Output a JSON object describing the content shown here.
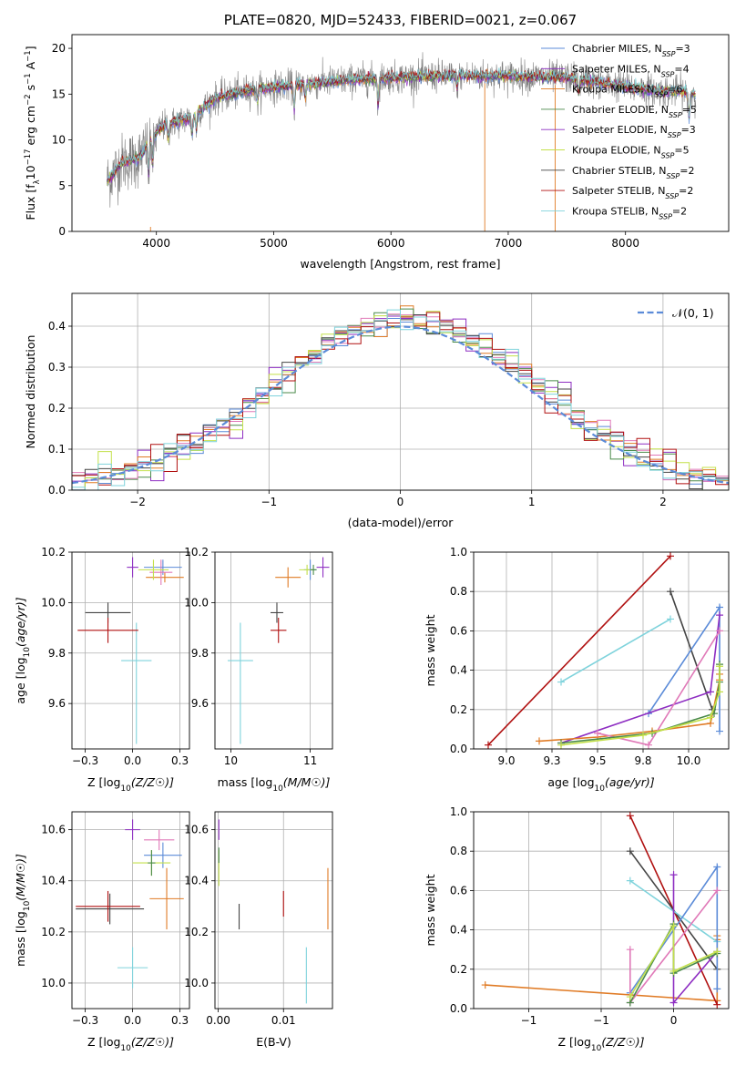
{
  "title": "PLATE=0820, MJD=52433, FIBERID=0021, z=0.067",
  "colors": {
    "chabrier_miles": "#5b8bd8",
    "salpeter_miles": "#8e2ec2",
    "kroupa_miles": "#e07b25",
    "chabrier_elodie": "#4a8a4a",
    "salpeter_elodie": "#8e2ec2",
    "kroupa_elodie": "#c3e04a",
    "chabrier_stelib": "#444444",
    "salpeter_stelib": "#b01010",
    "kroupa_stelib": "#7fd3dc",
    "data": "#808080",
    "pink": "#e079b8",
    "normal": "#5b8bd8"
  },
  "chart_data": [
    {
      "id": "spectrum",
      "type": "line",
      "title": "PLATE=0820, MJD=52433, FIBERID=0021, z=0.067",
      "xlabel": "wavelength [Angstrom, rest frame]",
      "ylabel_parts": [
        "Flux [f",
        "λ",
        "10",
        "−17",
        " erg cm",
        "−2",
        " s",
        "−1",
        " A",
        "−1",
        "]"
      ],
      "xlim": [
        3280,
        8880
      ],
      "ylim": [
        0,
        21.5
      ],
      "xticks": [
        4000,
        5000,
        6000,
        7000,
        8000
      ],
      "yticks": [
        0,
        5,
        10,
        15,
        20
      ],
      "continuum": [
        [
          3580,
          5.5
        ],
        [
          3700,
          7.5
        ],
        [
          3850,
          8.0
        ],
        [
          3950,
          10.0
        ],
        [
          4050,
          11.5
        ],
        [
          4300,
          12.5
        ],
        [
          4500,
          14.5
        ],
        [
          4800,
          15.5
        ],
        [
          5200,
          16.0
        ],
        [
          5600,
          16.5
        ],
        [
          6000,
          16.8
        ],
        [
          6500,
          17.0
        ],
        [
          7000,
          17.0
        ],
        [
          7500,
          16.8
        ],
        [
          8000,
          15.8
        ],
        [
          8300,
          15.3
        ],
        [
          8480,
          15.3
        ],
        [
          8580,
          15.0
        ]
      ],
      "absorptions": [
        [
          3934,
          3.5
        ],
        [
          3969,
          3.0
        ],
        [
          4102,
          1.5
        ],
        [
          4304,
          2.0
        ],
        [
          4340,
          1.8
        ],
        [
          4861,
          1.5
        ],
        [
          5175,
          2.5
        ],
        [
          5270,
          1.5
        ],
        [
          5890,
          2.8
        ],
        [
          6563,
          1.3
        ],
        [
          7600,
          1.5
        ],
        [
          8542,
          2.5
        ],
        [
          8662,
          2.0
        ]
      ],
      "data_spikes": [
        [
          3950,
          0.5
        ],
        [
          6800,
          17.0
        ],
        [
          7400,
          16.0
        ]
      ],
      "legend": [
        {
          "label": "Chabrier MILES, N",
          "sub": "SSP",
          "suffix": "=3",
          "color_key": "chabrier_miles"
        },
        {
          "label": "Salpeter MILES, N",
          "sub": "SSP",
          "suffix": "=4",
          "color_key": "salpeter_miles"
        },
        {
          "label": "Kroupa MILES, N",
          "sub": "SSP",
          "suffix": "=6",
          "color_key": "kroupa_miles"
        },
        {
          "label": "Chabrier ELODIE, N",
          "sub": "SSP",
          "suffix": "=5",
          "color_key": "chabrier_elodie"
        },
        {
          "label": "Salpeter ELODIE, N",
          "sub": "SSP",
          "suffix": "=3",
          "color_key": "salpeter_elodie"
        },
        {
          "label": "Kroupa ELODIE, N",
          "sub": "SSP",
          "suffix": "=5",
          "color_key": "kroupa_elodie"
        },
        {
          "label": "Chabrier STELIB, N",
          "sub": "SSP",
          "suffix": "=2",
          "color_key": "chabrier_stelib"
        },
        {
          "label": "Salpeter STELIB, N",
          "sub": "SSP",
          "suffix": "=2",
          "color_key": "salpeter_stelib"
        },
        {
          "label": "Kroupa STELIB, N",
          "sub": "SSP",
          "suffix": "=2",
          "color_key": "kroupa_stelib"
        }
      ]
    },
    {
      "id": "histogram",
      "type": "line",
      "xlabel": "(data-model)/error",
      "ylabel": "Normed distribution",
      "xlim": [
        -2.5,
        2.5
      ],
      "ylim": [
        0,
        0.48
      ],
      "xticks": [
        -2,
        -1,
        0,
        1,
        2
      ],
      "yticks": [
        0.0,
        0.1,
        0.2,
        0.3,
        0.4
      ],
      "grid": true,
      "legend": "𝒩(0, 1)",
      "legend_position": "top-right",
      "bin_width": 0.1,
      "series_color_keys": [
        "chabrier_miles",
        "salpeter_miles",
        "kroupa_miles",
        "chabrier_elodie",
        "pink",
        "kroupa_elodie",
        "chabrier_stelib",
        "salpeter_stelib",
        "kroupa_stelib"
      ],
      "normal_mean": 0.0,
      "normal_sigma": 1.0
    },
    {
      "id": "age_vs_Z",
      "type": "scatter",
      "xlabel": "Z [log10(Z/Z☉)]",
      "ylabel": "age  [log10(age/yr)]",
      "xlim": [
        -0.32,
        0.3
      ],
      "ylim": [
        9.42,
        10.2
      ],
      "xticks": [
        -0.25,
        0.0,
        0.25
      ],
      "yticks": [
        9.6,
        9.8,
        10.0,
        10.2
      ],
      "grid": true,
      "points": [
        {
          "x": 0.02,
          "y": 9.77,
          "xerr": 0.08,
          "yerr": [
            0.33,
            0.15
          ],
          "color_key": "kroupa_stelib"
        },
        {
          "x": -0.13,
          "y": 9.96,
          "xerr": 0.12,
          "yerr": 0.04,
          "color_key": "chabrier_stelib"
        },
        {
          "x": -0.13,
          "y": 9.89,
          "xerr": 0.16,
          "yerr": 0.05,
          "color_key": "salpeter_stelib"
        },
        {
          "x": 0.17,
          "y": 10.1,
          "xerr": 0.1,
          "yerr": 0.02,
          "color_key": "kroupa_miles"
        },
        {
          "x": 0.16,
          "y": 10.14,
          "xerr": 0.1,
          "yerr": 0.03,
          "color_key": "chabrier_miles"
        },
        {
          "x": 0.0,
          "y": 10.14,
          "xerr": 0.03,
          "yerr": 0.04,
          "color_key": "salpeter_miles"
        },
        {
          "x": 0.15,
          "y": 10.12,
          "xerr": 0.06,
          "yerr": 0.05,
          "color_key": "pink"
        },
        {
          "x": 0.11,
          "y": 10.13,
          "xerr": 0.08,
          "yerr": 0.04,
          "color_key": "kroupa_elodie"
        }
      ]
    },
    {
      "id": "age_vs_mass",
      "type": "scatter",
      "xlabel": "mass [log10(M/M☉)]",
      "ylabel": "",
      "xlim": [
        9.9,
        10.64
      ],
      "ylim": [
        9.42,
        10.2
      ],
      "xticks": [
        10.0,
        10.5
      ],
      "yticks": [
        9.6,
        9.8,
        10.0,
        10.2
      ],
      "grid": true,
      "points": [
        {
          "x": 10.06,
          "y": 9.77,
          "xerr": 0.08,
          "yerr": [
            0.33,
            0.15
          ],
          "color_key": "kroupa_stelib"
        },
        {
          "x": 10.29,
          "y": 9.96,
          "xerr": 0.04,
          "yerr": 0.04,
          "color_key": "chabrier_stelib"
        },
        {
          "x": 10.3,
          "y": 9.89,
          "xerr": 0.05,
          "yerr": 0.05,
          "color_key": "salpeter_stelib"
        },
        {
          "x": 10.36,
          "y": 10.1,
          "xerr": 0.08,
          "yerr": 0.04,
          "color_key": "kroupa_miles"
        },
        {
          "x": 10.5,
          "y": 10.13,
          "xerr": 0.04,
          "yerr": 0.04,
          "color_key": "chabrier_miles"
        },
        {
          "x": 10.58,
          "y": 10.14,
          "xerr": 0.04,
          "yerr": 0.04,
          "color_key": "salpeter_miles"
        },
        {
          "x": 10.48,
          "y": 10.13,
          "xerr": 0.05,
          "yerr": 0.02,
          "color_key": "kroupa_elodie"
        },
        {
          "x": 10.52,
          "y": 10.13,
          "xerr": 0.02,
          "yerr": 0.02,
          "color_key": "chabrier_elodie"
        }
      ]
    },
    {
      "id": "weight_vs_age",
      "type": "line",
      "xlabel": "age  [log10(age/yr)]",
      "ylabel": "mass weight",
      "xlim": [
        8.82,
        10.22
      ],
      "ylim": [
        0,
        1.0
      ],
      "xticks": [
        9.0,
        9.25,
        9.5,
        9.75,
        10.0
      ],
      "yticks": [
        0.0,
        0.2,
        0.4,
        0.6,
        0.8,
        1.0
      ],
      "grid": true,
      "series": [
        {
          "color_key": "salpeter_stelib",
          "x": [
            8.9,
            9.9
          ],
          "y": [
            0.02,
            0.98
          ]
        },
        {
          "color_key": "kroupa_stelib",
          "x": [
            9.3,
            9.9
          ],
          "y": [
            0.34,
            0.66
          ]
        },
        {
          "color_key": "chabrier_stelib",
          "x": [
            9.9,
            10.13
          ],
          "y": [
            0.8,
            0.2
          ]
        },
        {
          "color_key": "chabrier_miles",
          "x": [
            9.78,
            10.17,
            10.17
          ],
          "y": [
            0.18,
            0.72,
            0.09
          ]
        },
        {
          "color_key": "salpeter_miles",
          "x": [
            9.3,
            10.12,
            10.17
          ],
          "y": [
            0.03,
            0.29,
            0.68
          ]
        },
        {
          "color_key": "kroupa_miles",
          "x": [
            9.18,
            9.5,
            9.8,
            10.12,
            10.17,
            10.17
          ],
          "y": [
            0.04,
            0.06,
            0.09,
            0.13,
            0.35,
            0.38
          ]
        },
        {
          "color_key": "pink",
          "x": [
            9.5,
            9.78,
            10.17
          ],
          "y": [
            0.08,
            0.02,
            0.6
          ]
        },
        {
          "color_key": "chabrier_elodie",
          "x": [
            9.3,
            9.8,
            10.14,
            10.17,
            10.17
          ],
          "y": [
            0.03,
            0.08,
            0.18,
            0.34,
            0.43
          ]
        },
        {
          "color_key": "kroupa_elodie",
          "x": [
            9.3,
            9.75,
            10.12,
            10.17,
            10.17
          ],
          "y": [
            0.02,
            0.07,
            0.16,
            0.29,
            0.42
          ]
        }
      ]
    },
    {
      "id": "mass_vs_Z",
      "type": "scatter",
      "xlabel": "Z [log10(Z/Z☉)]",
      "ylabel": "mass [log10(M/M☉)]",
      "xlim": [
        -0.32,
        0.3
      ],
      "ylim": [
        9.9,
        10.67
      ],
      "xticks": [
        -0.25,
        0.0,
        0.25
      ],
      "yticks": [
        10.0,
        10.2,
        10.4,
        10.6
      ],
      "grid": true,
      "points": [
        {
          "x": 0.0,
          "y": 10.06,
          "xerr": 0.08,
          "yerr": 0.08,
          "color_key": "kroupa_stelib"
        },
        {
          "x": -0.12,
          "y": 10.29,
          "xerr": 0.18,
          "yerr": 0.06,
          "color_key": "chabrier_stelib"
        },
        {
          "x": -0.13,
          "y": 10.3,
          "xerr": 0.17,
          "yerr": 0.06,
          "color_key": "salpeter_stelib"
        },
        {
          "x": 0.18,
          "y": 10.33,
          "xerr": 0.09,
          "yerr": 0.12,
          "color_key": "kroupa_miles"
        },
        {
          "x": 0.16,
          "y": 10.5,
          "xerr": 0.1,
          "yerr": 0.05,
          "color_key": "chabrier_miles"
        },
        {
          "x": 0.0,
          "y": 10.6,
          "xerr": 0.04,
          "yerr": 0.04,
          "color_key": "salpeter_miles"
        },
        {
          "x": 0.14,
          "y": 10.56,
          "xerr": 0.08,
          "yerr": 0.04,
          "color_key": "pink"
        },
        {
          "x": 0.1,
          "y": 10.47,
          "xerr": 0.1,
          "yerr": 0.05,
          "color_key": "kroupa_elodie"
        },
        {
          "x": 0.1,
          "y": 10.47,
          "xerr": 0.02,
          "yerr": 0.05,
          "color_key": "chabrier_elodie"
        }
      ]
    },
    {
      "id": "mass_vs_EBV",
      "type": "scatter",
      "xlabel": "E(B-V)",
      "ylabel": "",
      "xlim": [
        -0.0005,
        0.0175
      ],
      "ylim": [
        9.9,
        10.67
      ],
      "xticks": [
        0.0,
        0.01
      ],
      "yticks": [
        10.0,
        10.2,
        10.4,
        10.6
      ],
      "grid": true,
      "points": [
        {
          "x": 0.0135,
          "y": 10.03,
          "yerr": 0.11,
          "color_key": "kroupa_stelib"
        },
        {
          "x": 0.0032,
          "y": 10.26,
          "yerr": 0.05,
          "color_key": "chabrier_stelib"
        },
        {
          "x": 0.01,
          "y": 10.31,
          "yerr": 0.05,
          "color_key": "salpeter_stelib"
        },
        {
          "x": 0.0168,
          "y": 10.33,
          "yerr": 0.12,
          "color_key": "kroupa_miles"
        },
        {
          "x": 0.0001,
          "y": 10.6,
          "yerr": 0.04,
          "color_key": "salpeter_miles"
        },
        {
          "x": 0.0001,
          "y": 10.45,
          "yerr": 0.07,
          "color_key": "kroupa_elodie"
        },
        {
          "x": 0.0001,
          "y": 10.5,
          "yerr": 0.03,
          "color_key": "chabrier_elodie"
        }
      ]
    },
    {
      "id": "weight_vs_Z",
      "type": "line",
      "xlabel": "Z [log10(Z/Z☉)]",
      "ylabel": "mass weight",
      "xlim": [
        -1.38,
        0.38
      ],
      "ylim": [
        0,
        1.0
      ],
      "xticks": [
        -1.0,
        -0.5,
        0.0
      ],
      "yticks": [
        0.0,
        0.2,
        0.4,
        0.6,
        0.8,
        1.0
      ],
      "grid": true,
      "series": [
        {
          "color_key": "kroupa_miles",
          "x": [
            -1.3,
            0.3,
            0.3,
            0.3
          ],
          "y": [
            0.12,
            0.04,
            0.35,
            0.37
          ]
        },
        {
          "color_key": "salpeter_stelib",
          "x": [
            -0.3,
            0.3
          ],
          "y": [
            0.98,
            0.02
          ]
        },
        {
          "color_key": "chabrier_stelib",
          "x": [
            -0.3,
            0.3
          ],
          "y": [
            0.8,
            0.2
          ]
        },
        {
          "color_key": "kroupa_stelib",
          "x": [
            -0.3,
            0.3
          ],
          "y": [
            0.65,
            0.34
          ]
        },
        {
          "color_key": "chabrier_miles",
          "x": [
            -0.3,
            0.3,
            0.3
          ],
          "y": [
            0.08,
            0.72,
            0.1
          ]
        },
        {
          "color_key": "salpeter_miles",
          "x": [
            0.0,
            0.0,
            0.3
          ],
          "y": [
            0.68,
            0.03,
            0.29
          ]
        },
        {
          "color_key": "pink",
          "x": [
            -0.3,
            -0.3,
            0.3
          ],
          "y": [
            0.3,
            0.03,
            0.6
          ]
        },
        {
          "color_key": "chabrier_elodie",
          "x": [
            -0.3,
            0.0,
            0.0,
            0.3
          ],
          "y": [
            0.03,
            0.43,
            0.18,
            0.28
          ]
        },
        {
          "color_key": "kroupa_elodie",
          "x": [
            -0.3,
            0.0,
            0.0,
            0.3
          ],
          "y": [
            0.06,
            0.42,
            0.19,
            0.29
          ]
        }
      ]
    }
  ]
}
